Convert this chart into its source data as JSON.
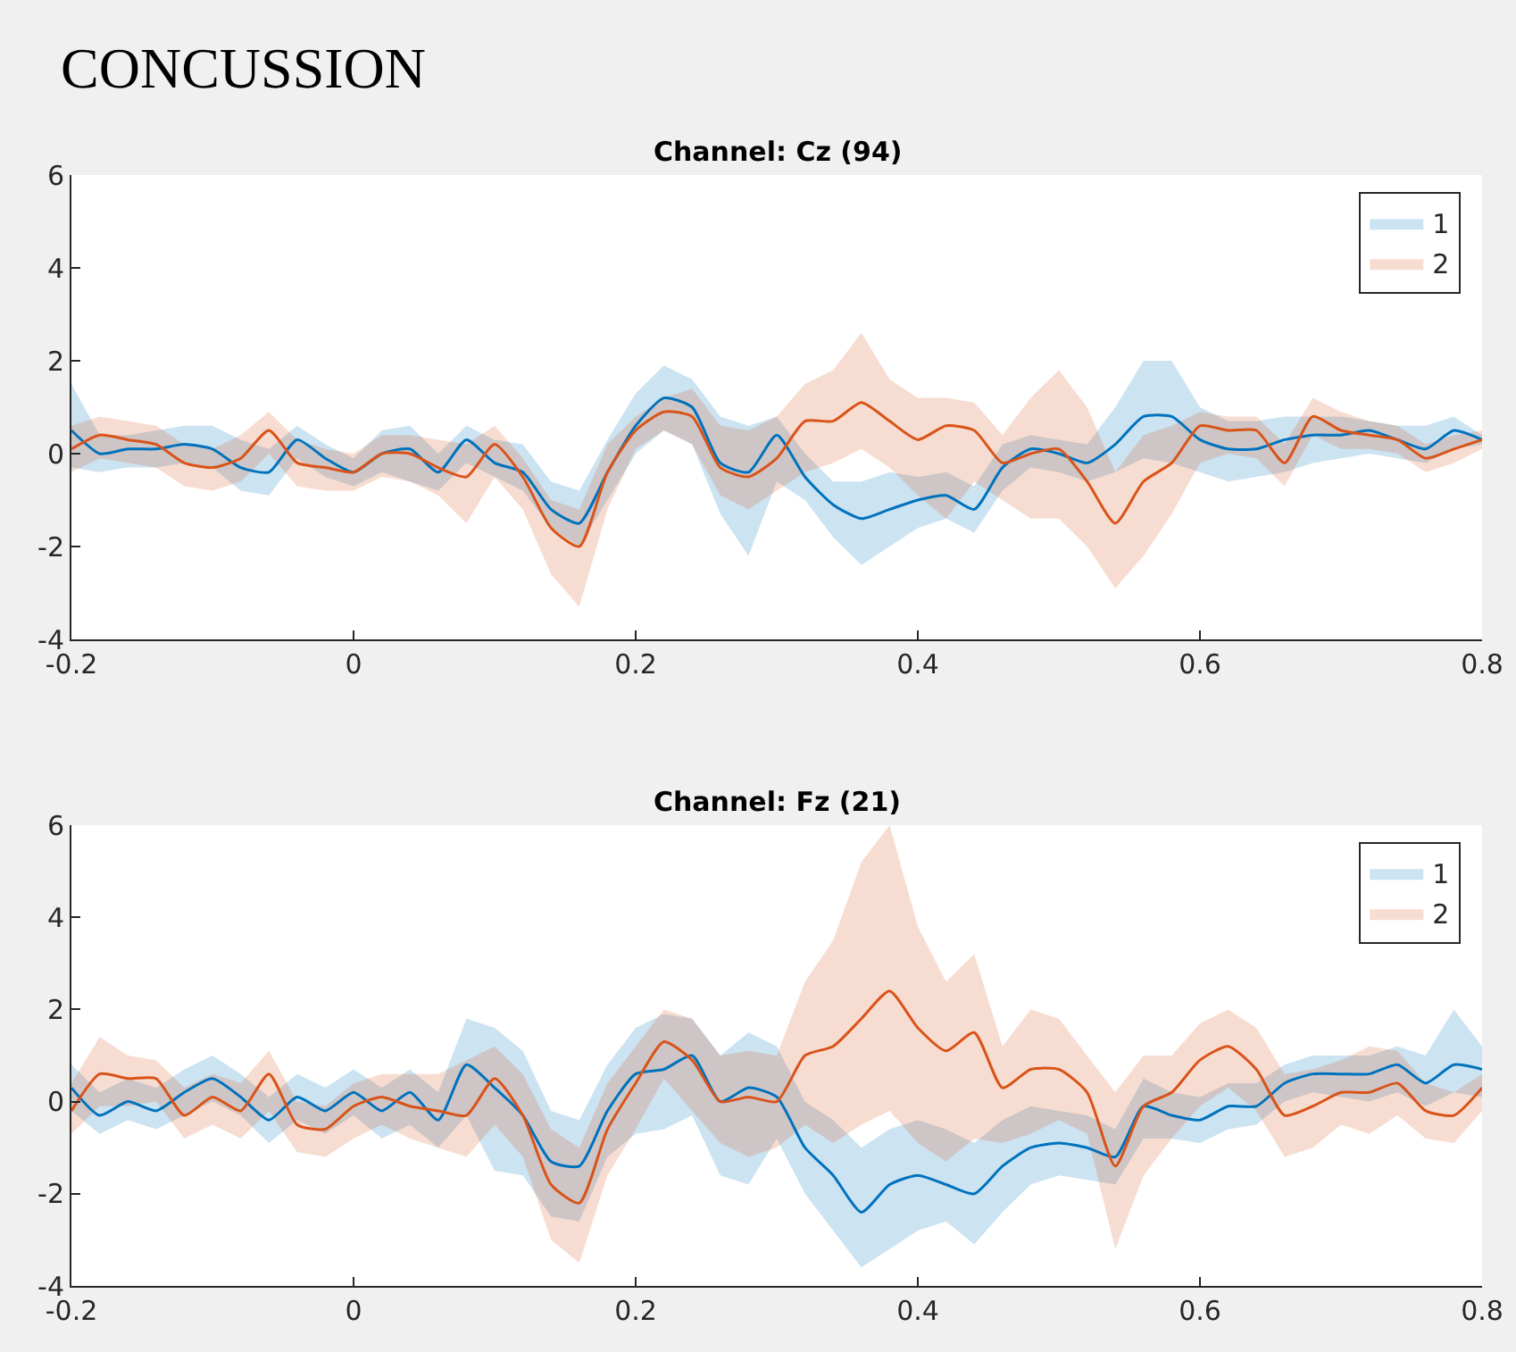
{
  "chart_data": [
    {
      "type": "line",
      "title": "Channel: Cz (94)",
      "annotations": [
        "CONCUSSION"
      ],
      "legend": "top right",
      "xlim": [
        -0.2,
        0.8
      ],
      "xticks": [
        -0.2,
        0,
        0.2,
        0.4,
        0.6,
        0.8
      ],
      "ylim": [
        -4,
        6
      ],
      "yticks": [
        -4,
        -2,
        0,
        2,
        4,
        6
      ],
      "x": [
        -0.2,
        -0.18,
        -0.16,
        -0.14,
        -0.12,
        -0.1,
        -0.08,
        -0.06,
        -0.04,
        -0.02,
        0,
        0.02,
        0.04,
        0.06,
        0.08,
        0.1,
        0.12,
        0.14,
        0.16,
        0.18,
        0.2,
        0.22,
        0.24,
        0.26,
        0.28,
        0.3,
        0.32,
        0.34,
        0.36,
        0.38,
        0.4,
        0.42,
        0.44,
        0.46,
        0.48,
        0.5,
        0.52,
        0.54,
        0.56,
        0.58,
        0.6,
        0.62,
        0.64,
        0.66,
        0.68,
        0.7,
        0.72,
        0.74,
        0.76,
        0.78,
        0.8
      ],
      "series": [
        {
          "name": "1",
          "color": "#0072bd",
          "values": [
            0.5,
            0,
            0.1,
            0.1,
            0.2,
            0.1,
            -0.3,
            -0.4,
            0.3,
            -0.1,
            -0.4,
            0,
            0.1,
            -0.4,
            0.3,
            -0.2,
            -0.4,
            -1.2,
            -1.5,
            -0.4,
            0.6,
            1.2,
            1.0,
            -0.2,
            -0.4,
            0.4,
            -0.5,
            -1.1,
            -1.4,
            -1.2,
            -1.0,
            -0.9,
            -1.2,
            -0.3,
            0.1,
            0,
            -0.2,
            0.2,
            0.8,
            0.8,
            0.3,
            0.1,
            0.1,
            0.3,
            0.4,
            0.4,
            0.5,
            0.3,
            0.1,
            0.5,
            0.3
          ],
          "lower": [
            -0.3,
            -0.4,
            -0.3,
            -0.3,
            -0.2,
            -0.3,
            -0.8,
            -0.9,
            -0.1,
            -0.5,
            -0.7,
            -0.4,
            -0.6,
            -0.8,
            -0.2,
            -0.5,
            -0.8,
            -1.6,
            -2.0,
            -1.0,
            0.0,
            0.5,
            0.2,
            -1.3,
            -2.2,
            -0.6,
            -1.0,
            -1.8,
            -2.4,
            -2.0,
            -1.6,
            -1.4,
            -1.7,
            -0.8,
            -0.3,
            -0.4,
            -0.6,
            -0.4,
            -0.1,
            -0.2,
            -0.4,
            -0.6,
            -0.5,
            -0.4,
            -0.2,
            -0.1,
            0.0,
            -0.1,
            -0.2,
            0.1,
            0.2
          ],
          "upper": [
            1.5,
            0.4,
            0.4,
            0.5,
            0.6,
            0.6,
            0.3,
            0.1,
            0.6,
            0.2,
            -0.1,
            0.5,
            0.6,
            0,
            0.6,
            0.3,
            0.2,
            -0.6,
            -0.8,
            0.3,
            1.3,
            1.9,
            1.6,
            0.8,
            0.6,
            0.8,
            0,
            -0.6,
            -0.6,
            -0.4,
            -0.5,
            -0.4,
            -0.7,
            0.2,
            0.4,
            0.3,
            0.2,
            1.0,
            2.0,
            2.0,
            1.0,
            0.7,
            0.7,
            0.8,
            0.8,
            0.8,
            0.7,
            0.6,
            0.6,
            0.8,
            0.4
          ]
        },
        {
          "name": "2",
          "color": "#d95319",
          "values": [
            0.1,
            0.4,
            0.3,
            0.2,
            -0.2,
            -0.3,
            -0.1,
            0.5,
            -0.2,
            -0.3,
            -0.4,
            0,
            0,
            -0.3,
            -0.5,
            0.2,
            -0.5,
            -1.6,
            -2.0,
            -0.4,
            0.5,
            0.9,
            0.8,
            -0.3,
            -0.5,
            -0.1,
            0.7,
            0.7,
            1.1,
            0.7,
            0.3,
            0.6,
            0.5,
            -0.2,
            0,
            0.1,
            -0.6,
            -1.5,
            -0.6,
            -0.2,
            0.6,
            0.5,
            0.5,
            -0.2,
            0.8,
            0.5,
            0.4,
            0.3,
            -0.1,
            0.1,
            0.3
          ],
          "lower": [
            -0.4,
            -0.1,
            -0.2,
            -0.3,
            -0.7,
            -0.8,
            -0.6,
            0.0,
            -0.7,
            -0.8,
            -0.8,
            -0.5,
            -0.6,
            -0.9,
            -1.5,
            -0.5,
            -1.2,
            -2.6,
            -3.3,
            -1.2,
            0.1,
            0.5,
            0.2,
            -0.9,
            -1.2,
            -0.8,
            -0.4,
            -0.2,
            0.1,
            -0.3,
            -0.9,
            -1.4,
            -0.6,
            -1.0,
            -1.4,
            -1.4,
            -2.0,
            -2.9,
            -2.2,
            -1.3,
            -0.2,
            0.0,
            -0.1,
            -0.7,
            0.4,
            0.1,
            0.1,
            0.0,
            -0.4,
            -0.2,
            0.1
          ],
          "upper": [
            0.6,
            0.8,
            0.7,
            0.6,
            0.2,
            0.1,
            0.4,
            0.9,
            0.3,
            0.1,
            0,
            0.4,
            0.4,
            0.3,
            0.2,
            0.6,
            -0.1,
            -1.0,
            -1.2,
            0.2,
            0.8,
            1.2,
            1.4,
            0.6,
            0.5,
            0.8,
            1.5,
            1.8,
            2.6,
            1.6,
            1.2,
            1.2,
            1.1,
            0.4,
            1.2,
            1.8,
            1.0,
            -0.4,
            0.4,
            0.6,
            0.9,
            0.8,
            0.8,
            0.2,
            1.2,
            0.9,
            0.7,
            0.6,
            0.2,
            0.4,
            0.5
          ]
        }
      ]
    },
    {
      "type": "line",
      "title": "Channel: Fz (21)",
      "legend": "top right",
      "xlim": [
        -0.2,
        0.8
      ],
      "xticks": [
        -0.2,
        0,
        0.2,
        0.4,
        0.6,
        0.8
      ],
      "ylim": [
        -4,
        6
      ],
      "yticks": [
        -4,
        -2,
        0,
        2,
        4,
        6
      ],
      "x": [
        -0.2,
        -0.18,
        -0.16,
        -0.14,
        -0.12,
        -0.1,
        -0.08,
        -0.06,
        -0.04,
        -0.02,
        0,
        0.02,
        0.04,
        0.06,
        0.08,
        0.1,
        0.12,
        0.14,
        0.16,
        0.18,
        0.2,
        0.22,
        0.24,
        0.26,
        0.28,
        0.3,
        0.32,
        0.34,
        0.36,
        0.38,
        0.4,
        0.42,
        0.44,
        0.46,
        0.48,
        0.5,
        0.52,
        0.54,
        0.56,
        0.58,
        0.6,
        0.62,
        0.64,
        0.66,
        0.68,
        0.7,
        0.72,
        0.74,
        0.76,
        0.78,
        0.8
      ],
      "series": [
        {
          "name": "1",
          "color": "#0072bd",
          "values": [
            0.3,
            -0.3,
            0,
            -0.2,
            0.2,
            0.5,
            0.1,
            -0.4,
            0.1,
            -0.2,
            0.2,
            -0.2,
            0.2,
            -0.4,
            0.8,
            0.3,
            -0.3,
            -1.3,
            -1.4,
            -0.2,
            0.6,
            0.7,
            1.0,
            0,
            0.3,
            0.1,
            -1.0,
            -1.6,
            -2.4,
            -1.8,
            -1.6,
            -1.8,
            -2.0,
            -1.4,
            -1.0,
            -0.9,
            -1.0,
            -1.2,
            -0.1,
            -0.3,
            -0.4,
            -0.1,
            -0.1,
            0.4,
            0.6,
            0.6,
            0.6,
            0.8,
            0.4,
            0.8,
            0.7
          ],
          "lower": [
            -0.2,
            -0.7,
            -0.4,
            -0.6,
            -0.3,
            0.0,
            -0.3,
            -0.9,
            -0.4,
            -0.7,
            -0.3,
            -0.8,
            -0.5,
            -1.0,
            -0.3,
            -1.5,
            -1.6,
            -2.5,
            -2.6,
            -1.2,
            -0.7,
            -0.6,
            -0.3,
            -1.6,
            -1.8,
            -0.8,
            -2.0,
            -2.8,
            -3.6,
            -3.2,
            -2.8,
            -2.6,
            -3.1,
            -2.4,
            -1.8,
            -1.6,
            -1.7,
            -1.8,
            -0.8,
            -0.8,
            -0.9,
            -0.6,
            -0.5,
            0.0,
            0.2,
            0.1,
            0.0,
            0.2,
            -0.1,
            0.2,
            0.1
          ],
          "upper": [
            0.8,
            0.2,
            0.5,
            0.3,
            0.7,
            1.0,
            0.6,
            0.1,
            0.6,
            0.3,
            0.7,
            0.3,
            0.7,
            0.2,
            1.8,
            1.6,
            1.1,
            -0.2,
            -0.4,
            0.8,
            1.6,
            1.9,
            1.8,
            1.0,
            1.5,
            1.2,
            0.0,
            -0.4,
            -1.0,
            -0.6,
            -0.4,
            -0.6,
            -0.9,
            -0.4,
            -0.1,
            -0.2,
            -0.3,
            -0.6,
            0.5,
            0.2,
            0.1,
            0.4,
            0.4,
            0.8,
            1.0,
            1.0,
            1.0,
            1.2,
            1.0,
            2.0,
            1.2
          ]
        },
        {
          "name": "2",
          "color": "#d95319",
          "values": [
            -0.2,
            0.6,
            0.5,
            0.5,
            -0.3,
            0.1,
            -0.2,
            0.6,
            -0.5,
            -0.6,
            -0.1,
            0.1,
            -0.1,
            -0.2,
            -0.3,
            0.5,
            -0.3,
            -1.8,
            -2.2,
            -0.6,
            0.4,
            1.3,
            0.9,
            0,
            0.1,
            0,
            1.0,
            1.2,
            1.8,
            2.4,
            1.6,
            1.1,
            1.5,
            0.3,
            0.7,
            0.7,
            0.2,
            -1.4,
            -0.1,
            0.2,
            0.9,
            1.2,
            0.7,
            -0.3,
            -0.1,
            0.2,
            0.2,
            0.4,
            -0.2,
            -0.3,
            0.3
          ],
          "lower": [
            -0.7,
            -0.1,
            -0.1,
            0.0,
            -0.8,
            -0.5,
            -0.8,
            -0.2,
            -1.1,
            -1.2,
            -0.8,
            -0.5,
            -0.8,
            -1.0,
            -1.2,
            -0.5,
            -1.2,
            -3.0,
            -3.5,
            -1.6,
            -0.6,
            0.5,
            -0.2,
            -0.9,
            -1.2,
            -1.0,
            -0.5,
            -0.9,
            -0.5,
            -0.2,
            -0.9,
            -1.3,
            -0.8,
            -0.9,
            -0.7,
            -0.4,
            -0.7,
            -3.2,
            -1.6,
            -0.8,
            -0.1,
            0.3,
            -0.2,
            -1.2,
            -1.0,
            -0.5,
            -0.7,
            -0.3,
            -0.8,
            -0.9,
            -0.2
          ],
          "upper": [
            0.4,
            1.4,
            1.0,
            0.9,
            0.3,
            0.6,
            0.4,
            1.1,
            0.0,
            -0.1,
            0.4,
            0.6,
            0.6,
            0.6,
            0.9,
            1.2,
            0.6,
            -0.6,
            -1.0,
            0.4,
            1.2,
            2.0,
            1.8,
            1.0,
            1.1,
            1.0,
            2.6,
            3.5,
            5.2,
            6.0,
            3.8,
            2.6,
            3.2,
            1.2,
            2.0,
            1.8,
            1.0,
            0.2,
            1.0,
            1.0,
            1.7,
            2.0,
            1.6,
            0.6,
            0.7,
            0.9,
            1.2,
            1.1,
            0.4,
            0.2,
            0.6
          ]
        }
      ]
    }
  ]
}
